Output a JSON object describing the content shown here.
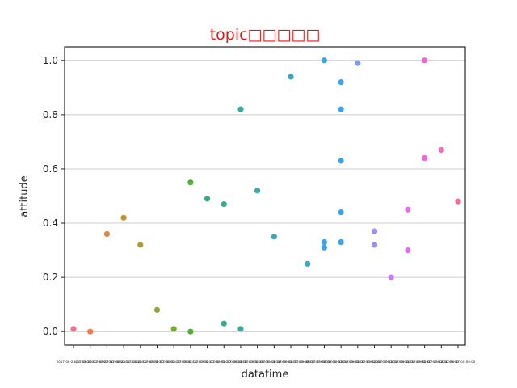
{
  "chart_data": {
    "type": "scatter",
    "title": "topic□□□□□",
    "title_color": "#e31a1c",
    "xlabel": "datatime",
    "ylabel": "attitude",
    "ylim": [
      -0.05,
      1.05
    ],
    "yticks": [
      0.0,
      0.2,
      0.4,
      0.6,
      0.8,
      1.0
    ],
    "ytick_labels": [
      "0.0",
      "0.2",
      "0.4",
      "0.6",
      "0.8",
      "1.0"
    ],
    "grid": "horizontal",
    "legend": "none",
    "categories": [
      "2017-08-25",
      "2017-08-26",
      "2017-08-27",
      "2017-08-28",
      "2017-08-29",
      "2017-08-30",
      "2017-08-31",
      "2017-09-01",
      "2017-09-02",
      "2017-09-03",
      "2017-09-04",
      "2017-09-05",
      "2017-09-06",
      "2017-09-07",
      "2017-09-08",
      "2017-09-09",
      "2017-09-10",
      "2017-09-11",
      "2017-09-12",
      "2017-09-13",
      "2017-09-14",
      "2017-09-15",
      "2017-09-16",
      "2017-09-17"
    ],
    "xtick_labels": [
      "2017-08-25 00:00:00",
      "2017-08-26 00:00:00",
      "2017-08-27 00:00:00",
      "2017-08-28 00:00:00",
      "2017-08-29 00:00:00",
      "2017-08-30 00:00:00",
      "2017-08-31 00:00:00",
      "2017-09-01 00:00:00",
      "2017-09-02 00:00:00",
      "2017-09-03 00:00:00",
      "2017-09-04 00:00:00",
      "2017-09-05 00:00:00",
      "2017-09-06 00:00:00",
      "2017-09-07 00:00:00",
      "2017-09-08 00:00:00",
      "2017-09-09 00:00:00",
      "2017-09-10 00:00:00",
      "2017-09-11 00:00:00",
      "2017-09-12 00:00:00",
      "2017-09-13 00:00:00",
      "2017-09-14 00:00:00",
      "2017-09-15 00:00:00",
      "2017-09-16 00:00:00",
      "2017-09-17 00:00:00"
    ],
    "points": [
      {
        "x": "2017-08-25",
        "y": 0.01,
        "color": "#f77189"
      },
      {
        "x": "2017-08-26",
        "y": 0.0,
        "color": "#f7754f"
      },
      {
        "x": "2017-08-27",
        "y": 0.36,
        "color": "#dc8932"
      },
      {
        "x": "2017-08-28",
        "y": 0.42,
        "color": "#c39532"
      },
      {
        "x": "2017-08-29",
        "y": 0.32,
        "color": "#ae9d31"
      },
      {
        "x": "2017-08-30",
        "y": 0.08,
        "color": "#97a431"
      },
      {
        "x": "2017-08-31",
        "y": 0.01,
        "color": "#77ab31"
      },
      {
        "x": "2017-09-01",
        "y": 0.55,
        "color": "#50b131"
      },
      {
        "x": "2017-09-01",
        "y": 0.0,
        "color": "#50b131"
      },
      {
        "x": "2017-09-02",
        "y": 0.49,
        "color": "#33b07a"
      },
      {
        "x": "2017-09-03",
        "y": 0.47,
        "color": "#34ae91"
      },
      {
        "x": "2017-09-03",
        "y": 0.03,
        "color": "#34ae91"
      },
      {
        "x": "2017-09-04",
        "y": 0.82,
        "color": "#35ac9f"
      },
      {
        "x": "2017-09-04",
        "y": 0.01,
        "color": "#35ac9f"
      },
      {
        "x": "2017-09-05",
        "y": 0.52,
        "color": "#36abab"
      },
      {
        "x": "2017-09-06",
        "y": 0.35,
        "color": "#37a9b6"
      },
      {
        "x": "2017-09-07",
        "y": 0.94,
        "color": "#38a8c1"
      },
      {
        "x": "2017-09-08",
        "y": 0.25,
        "color": "#39a7ce"
      },
      {
        "x": "2017-09-09",
        "y": 1.0,
        "color": "#3ba3ec"
      },
      {
        "x": "2017-09-09",
        "y": 0.33,
        "color": "#3ba3ec"
      },
      {
        "x": "2017-09-09",
        "y": 0.31,
        "color": "#3ba3ec"
      },
      {
        "x": "2017-09-10",
        "y": 0.92,
        "color": "#3ba3ec"
      },
      {
        "x": "2017-09-10",
        "y": 0.82,
        "color": "#3ba3ec"
      },
      {
        "x": "2017-09-10",
        "y": 0.63,
        "color": "#3ba3ec"
      },
      {
        "x": "2017-09-10",
        "y": 0.44,
        "color": "#3ba3ec"
      },
      {
        "x": "2017-09-10",
        "y": 0.33,
        "color": "#3ba3ec"
      },
      {
        "x": "2017-09-11",
        "y": 0.99,
        "color": "#7e9cf4"
      },
      {
        "x": "2017-09-12",
        "y": 0.37,
        "color": "#a48cf4"
      },
      {
        "x": "2017-09-12",
        "y": 0.32,
        "color": "#a48cf4"
      },
      {
        "x": "2017-09-13",
        "y": 0.2,
        "color": "#cc7af4"
      },
      {
        "x": "2017-09-14",
        "y": 0.45,
        "color": "#e46ee8"
      },
      {
        "x": "2017-09-14",
        "y": 0.3,
        "color": "#e46ee8"
      },
      {
        "x": "2017-09-15",
        "y": 1.0,
        "color": "#f464d4"
      },
      {
        "x": "2017-09-15",
        "y": 0.64,
        "color": "#f464d4"
      },
      {
        "x": "2017-09-16",
        "y": 0.67,
        "color": "#f569b7"
      },
      {
        "x": "2017-09-17",
        "y": 0.48,
        "color": "#f66c9e"
      }
    ]
  }
}
